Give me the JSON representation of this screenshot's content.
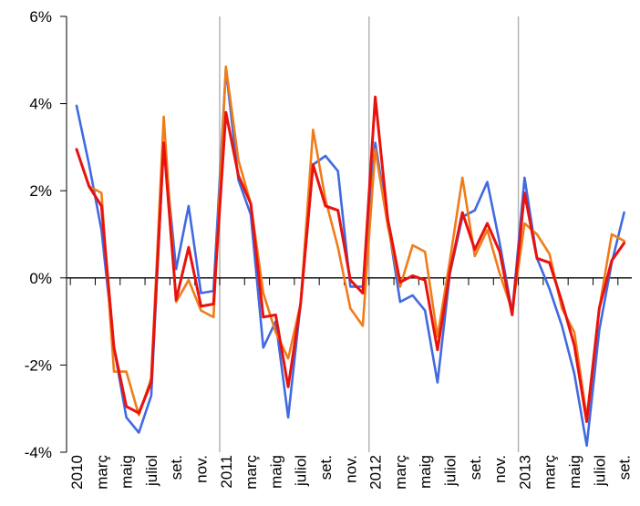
{
  "chart_data": {
    "type": "line",
    "title": "",
    "xlabel": "",
    "ylabel": "",
    "ylim": [
      -4,
      6
    ],
    "y_ticks": [
      "-4%",
      "-2%",
      "0%",
      "2%",
      "4%",
      "6%"
    ],
    "y_tick_values": [
      -4,
      -2,
      0,
      2,
      4,
      6
    ],
    "x_tick_labels": [
      "2010",
      "març",
      "maig",
      "juliol",
      "set.",
      "nov.",
      "2011",
      "març",
      "maig",
      "juliol",
      "set.",
      "nov.",
      "2012",
      "març",
      "maig",
      "juliol",
      "set.",
      "nov.",
      "2013",
      "març",
      "maig",
      "juliol",
      "set."
    ],
    "year_separators": [
      "2011",
      "2012",
      "2013"
    ],
    "grid": false,
    "legend": "none",
    "months": 45,
    "series": [
      {
        "color": "#4169e1",
        "values": [
          3.95,
          2.6,
          1.1,
          -1.6,
          -3.2,
          -3.55,
          -2.7,
          3.1,
          0.2,
          1.65,
          -0.35,
          -0.3,
          4.8,
          2.25,
          1.45,
          -1.6,
          -1.0,
          -3.2,
          -0.6,
          2.6,
          2.8,
          2.45,
          -0.2,
          -0.2,
          3.1,
          1.3,
          -0.55,
          -0.4,
          -0.75,
          -2.4,
          0.1,
          1.4,
          1.55,
          2.2,
          0.8,
          -0.8,
          2.3,
          0.45,
          -0.25,
          -1.1,
          -2.2,
          -3.85,
          -1.2,
          0.35,
          1.5
        ]
      },
      {
        "color": "#f07c19",
        "values": [
          2.95,
          2.1,
          1.95,
          -2.15,
          -2.15,
          -3.15,
          -2.3,
          3.7,
          -0.55,
          -0.05,
          -0.75,
          -0.9,
          4.85,
          2.7,
          1.7,
          -0.35,
          -1.25,
          -1.85,
          -0.6,
          3.4,
          1.8,
          0.7,
          -0.7,
          -1.1,
          2.95,
          1.2,
          -0.2,
          0.75,
          0.6,
          -1.35,
          0.4,
          2.3,
          0.5,
          1.1,
          0.1,
          -0.75,
          1.25,
          1.0,
          0.55,
          -0.7,
          -1.25,
          -3.2,
          -0.7,
          1.0,
          0.85
        ]
      },
      {
        "color": "#e8120e",
        "values": [
          2.95,
          2.1,
          1.65,
          -1.6,
          -2.95,
          -3.1,
          -2.4,
          3.1,
          -0.5,
          0.7,
          -0.65,
          -0.6,
          3.8,
          2.35,
          1.7,
          -0.9,
          -0.85,
          -2.5,
          -0.6,
          2.6,
          1.65,
          1.55,
          -0.05,
          -0.35,
          4.15,
          1.35,
          -0.1,
          0.05,
          -0.05,
          -1.65,
          0.15,
          1.5,
          0.65,
          1.25,
          0.6,
          -0.85,
          1.95,
          0.45,
          0.35,
          -0.55,
          -1.55,
          -3.3,
          -0.7,
          0.4,
          0.8
        ]
      }
    ]
  }
}
